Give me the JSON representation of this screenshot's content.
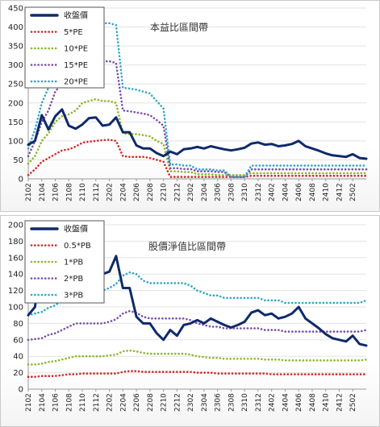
{
  "chart_data": [
    {
      "type": "line",
      "title": "本益比區間帶",
      "x": [
        "2102",
        "2103",
        "2104",
        "2105",
        "2106",
        "2107",
        "2108",
        "2109",
        "2110",
        "2111",
        "2112",
        "2201",
        "2202",
        "2203",
        "2204",
        "2205",
        "2206",
        "2207",
        "2208",
        "2209",
        "2210",
        "2211",
        "2212",
        "2301",
        "2302",
        "2303",
        "2304",
        "2305",
        "2306",
        "2307",
        "2308",
        "2309",
        "2310",
        "2311",
        "2312",
        "2401",
        "2402",
        "2403",
        "2404",
        "2405",
        "2406",
        "2407",
        "2408",
        "2409",
        "2410",
        "2411",
        "2412",
        "2501",
        "2502",
        "2503",
        "2504"
      ],
      "x_tick_labels": [
        "2102",
        "2104",
        "2106",
        "2108",
        "2110",
        "2112",
        "2202",
        "2204",
        "2206",
        "2208",
        "2210",
        "2212",
        "2302",
        "2304",
        "2306",
        "2308",
        "2310",
        "2312",
        "2402",
        "2404",
        "2406",
        "2408",
        "2410",
        "2412",
        "2502"
      ],
      "ylim": [
        0,
        450
      ],
      "yticks": [
        0,
        50,
        100,
        150,
        200,
        250,
        300,
        350,
        400,
        450
      ],
      "legend_position": "top-left",
      "series": [
        {
          "name": "收盤價",
          "color": "#0f2a6b",
          "style": "solid",
          "values": [
            90,
            100,
            168,
            130,
            165,
            183,
            140,
            132,
            143,
            160,
            162,
            140,
            143,
            162,
            123,
            123,
            88,
            80,
            80,
            68,
            60,
            72,
            65,
            78,
            80,
            84,
            80,
            86,
            82,
            78,
            75,
            78,
            82,
            93,
            96,
            90,
            92,
            86,
            88,
            92,
            100,
            86,
            80,
            74,
            67,
            62,
            60,
            58,
            65,
            55,
            53
          ]
        },
        {
          "name": "5*PE",
          "color": "#d42a2a",
          "style": "dotted",
          "values": [
            10,
            25,
            45,
            55,
            65,
            75,
            78,
            85,
            95,
            98,
            100,
            102,
            103,
            100,
            60,
            58,
            58,
            58,
            55,
            50,
            45,
            5,
            5,
            5,
            5,
            5,
            5,
            5,
            5,
            5,
            5,
            5,
            5,
            8,
            8,
            8,
            8,
            8,
            8,
            8,
            8,
            8,
            8,
            8,
            8,
            8,
            8,
            8,
            8,
            8,
            8
          ]
        },
        {
          "name": "10*PE",
          "color": "#8db82f",
          "style": "dotted",
          "values": [
            40,
            60,
            100,
            120,
            150,
            165,
            170,
            180,
            200,
            205,
            210,
            205,
            205,
            200,
            120,
            118,
            118,
            115,
            112,
            100,
            92,
            20,
            20,
            18,
            18,
            12,
            12,
            12,
            10,
            10,
            10,
            10,
            10,
            15,
            15,
            15,
            15,
            15,
            15,
            15,
            15,
            15,
            15,
            15,
            15,
            15,
            15,
            15,
            15,
            15,
            15
          ]
        },
        {
          "name": "15*PE",
          "color": "#7a4fa8",
          "style": "dotted",
          "values": [
            60,
            100,
            150,
            180,
            230,
            250,
            255,
            270,
            300,
            308,
            315,
            310,
            310,
            305,
            180,
            178,
            175,
            172,
            168,
            155,
            140,
            28,
            28,
            26,
            26,
            20,
            20,
            20,
            18,
            18,
            5,
            5,
            5,
            25,
            25,
            25,
            25,
            25,
            25,
            25,
            25,
            25,
            25,
            25,
            25,
            25,
            25,
            25,
            25,
            25,
            25
          ]
        },
        {
          "name": "20*PE",
          "color": "#2fa7c6",
          "style": "dotted",
          "values": [
            80,
            130,
            200,
            240,
            310,
            335,
            340,
            360,
            400,
            410,
            418,
            410,
            410,
            405,
            240,
            238,
            235,
            230,
            225,
            205,
            185,
            38,
            38,
            35,
            35,
            25,
            25,
            25,
            22,
            22,
            5,
            5,
            5,
            35,
            35,
            35,
            35,
            35,
            35,
            35,
            35,
            35,
            35,
            35,
            35,
            35,
            35,
            35,
            35,
            35,
            35
          ]
        }
      ]
    },
    {
      "type": "line",
      "title": "股價淨值比區間帶",
      "x": [
        "2102",
        "2103",
        "2104",
        "2105",
        "2106",
        "2107",
        "2108",
        "2109",
        "2110",
        "2111",
        "2112",
        "2201",
        "2202",
        "2203",
        "2204",
        "2205",
        "2206",
        "2207",
        "2208",
        "2209",
        "2210",
        "2211",
        "2212",
        "2301",
        "2302",
        "2303",
        "2304",
        "2305",
        "2306",
        "2307",
        "2308",
        "2309",
        "2310",
        "2311",
        "2312",
        "2401",
        "2402",
        "2403",
        "2404",
        "2405",
        "2406",
        "2407",
        "2408",
        "2409",
        "2410",
        "2411",
        "2412",
        "2501",
        "2502",
        "2503",
        "2504"
      ],
      "x_tick_labels": [
        "2102",
        "2104",
        "2106",
        "2108",
        "2110",
        "2112",
        "2202",
        "2204",
        "2206",
        "2208",
        "2210",
        "2212",
        "2302",
        "2304",
        "2306",
        "2308",
        "2310",
        "2312",
        "2402",
        "2404",
        "2406",
        "2408",
        "2410",
        "2412",
        "2502"
      ],
      "ylim": [
        0,
        200
      ],
      "yticks": [
        0,
        20,
        40,
        60,
        80,
        100,
        120,
        140,
        160,
        180,
        200
      ],
      "legend_position": "top-left",
      "series": [
        {
          "name": "收盤價",
          "color": "#0f2a6b",
          "style": "solid",
          "values": [
            90,
            100,
            168,
            130,
            165,
            183,
            140,
            132,
            143,
            160,
            162,
            140,
            143,
            162,
            123,
            123,
            88,
            80,
            80,
            68,
            60,
            72,
            65,
            78,
            80,
            84,
            80,
            86,
            82,
            78,
            75,
            78,
            82,
            93,
            96,
            90,
            92,
            86,
            88,
            92,
            100,
            86,
            80,
            74,
            67,
            62,
            60,
            58,
            65,
            55,
            53
          ]
        },
        {
          "name": "0.5*PB",
          "color": "#d42a2a",
          "style": "dotted",
          "values": [
            15,
            15,
            16,
            16,
            16,
            17,
            18,
            18,
            19,
            19,
            19,
            19,
            19,
            19,
            21,
            22,
            22,
            21,
            21,
            21,
            21,
            21,
            21,
            21,
            21,
            20,
            20,
            20,
            19,
            19,
            19,
            19,
            19,
            19,
            19,
            19,
            18,
            18,
            18,
            18,
            18,
            18,
            18,
            18,
            18,
            18,
            18,
            18,
            18,
            18,
            18
          ]
        },
        {
          "name": "1*PB",
          "color": "#8db82f",
          "style": "dotted",
          "values": [
            30,
            30,
            31,
            33,
            34,
            36,
            38,
            40,
            40,
            40,
            40,
            40,
            41,
            42,
            46,
            47,
            46,
            44,
            43,
            43,
            43,
            43,
            43,
            43,
            42,
            40,
            39,
            38,
            38,
            37,
            37,
            37,
            37,
            37,
            37,
            36,
            36,
            36,
            35,
            35,
            35,
            35,
            35,
            35,
            35,
            35,
            35,
            35,
            35,
            35,
            36
          ]
        },
        {
          "name": "2*PB",
          "color": "#7a4fa8",
          "style": "dotted",
          "values": [
            60,
            61,
            62,
            66,
            68,
            72,
            76,
            80,
            80,
            80,
            80,
            80,
            82,
            85,
            92,
            95,
            93,
            88,
            86,
            86,
            86,
            86,
            86,
            86,
            84,
            80,
            78,
            76,
            76,
            74,
            74,
            74,
            74,
            74,
            74,
            72,
            72,
            72,
            70,
            70,
            70,
            70,
            70,
            70,
            70,
            70,
            70,
            70,
            70,
            70,
            72
          ]
        },
        {
          "name": "3*PB",
          "color": "#2fa7c6",
          "style": "dotted",
          "values": [
            90,
            92,
            94,
            99,
            102,
            108,
            114,
            120,
            120,
            120,
            120,
            120,
            123,
            128,
            138,
            142,
            140,
            132,
            129,
            129,
            129,
            129,
            129,
            129,
            126,
            120,
            117,
            114,
            114,
            111,
            111,
            111,
            111,
            111,
            111,
            108,
            108,
            108,
            105,
            105,
            105,
            105,
            105,
            105,
            105,
            105,
            105,
            105,
            105,
            105,
            108
          ]
        }
      ]
    }
  ]
}
